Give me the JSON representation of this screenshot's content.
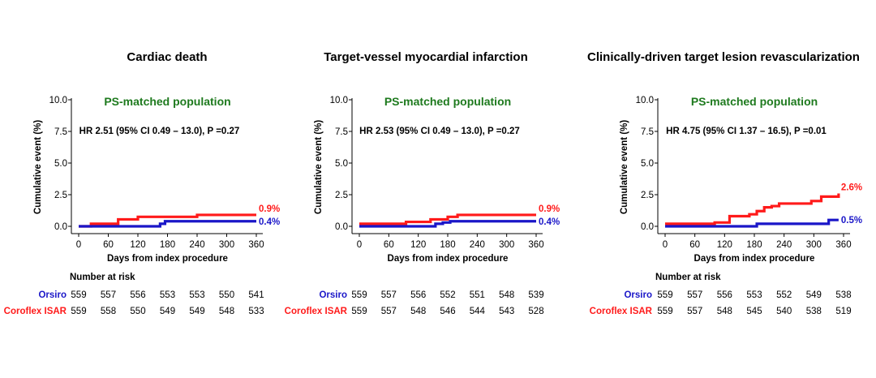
{
  "figure": {
    "colors": {
      "orsiro": "#1a16c8",
      "coroflex": "#ff1a1a",
      "population_label": "#1e7a1e",
      "text": "#000000"
    }
  },
  "chart_data": [
    {
      "type": "line",
      "title": "Cardiac death",
      "subtitle": "PS-matched population",
      "annotation": "HR 2.51 (95% CI 0.49 – 13.0), P =0.27",
      "xlabel": "Days from index procedure",
      "ylabel": "Cumulative event (%)",
      "xlim": [
        0,
        360
      ],
      "ylim": [
        0,
        10
      ],
      "x_ticks": [
        "0",
        "60",
        "120",
        "180",
        "240",
        "300",
        "360"
      ],
      "y_ticks": [
        "0.0",
        "2.5",
        "5.0",
        "7.5",
        "10.0"
      ],
      "series": [
        {
          "name": "Coroflex ISAR",
          "end_label": "0.9%",
          "x": [
            0,
            25,
            75,
            80,
            120,
            240,
            360
          ],
          "y": [
            0,
            0.2,
            0.2,
            0.55,
            0.75,
            0.9,
            0.9
          ]
        },
        {
          "name": "Orsiro",
          "end_label": "0.4%",
          "x": [
            0,
            165,
            175,
            360
          ],
          "y": [
            0,
            0.2,
            0.4,
            0.4
          ]
        }
      ],
      "risk_table": {
        "title": "Number at risk",
        "rows": [
          {
            "label": "Orsiro",
            "values": [
              "559",
              "557",
              "556",
              "553",
              "553",
              "550",
              "541"
            ]
          },
          {
            "label": "Coroflex ISAR",
            "values": [
              "559",
              "558",
              "550",
              "549",
              "549",
              "548",
              "533"
            ]
          }
        ]
      }
    },
    {
      "type": "line",
      "title": "Target-vessel myocardial infarction",
      "subtitle": "PS-matched population",
      "annotation": "HR 2.53 (95% CI 0.49 – 13.0), P =0.27",
      "xlabel": "Days from index procedure",
      "ylabel": "Cumulative event (%)",
      "xlim": [
        0,
        360
      ],
      "ylim": [
        0,
        10
      ],
      "x_ticks": [
        "0",
        "60",
        "120",
        "180",
        "240",
        "300",
        "360"
      ],
      "y_ticks": [
        "0.0",
        "2.5",
        "5.0",
        "7.5",
        "10.0"
      ],
      "series": [
        {
          "name": "Coroflex ISAR",
          "end_label": "0.9%",
          "x": [
            0,
            95,
            145,
            180,
            200,
            360
          ],
          "y": [
            0.2,
            0.35,
            0.55,
            0.75,
            0.9,
            0.9
          ]
        },
        {
          "name": "Orsiro",
          "end_label": "0.4%",
          "x": [
            0,
            155,
            170,
            185,
            360
          ],
          "y": [
            0,
            0.2,
            0.3,
            0.4,
            0.4
          ]
        }
      ],
      "risk_table": {
        "title": "",
        "rows": [
          {
            "label": "Orsiro",
            "values": [
              "559",
              "557",
              "556",
              "552",
              "551",
              "548",
              "539"
            ]
          },
          {
            "label": "Coroflex ISAR",
            "values": [
              "559",
              "557",
              "548",
              "546",
              "544",
              "543",
              "528"
            ]
          }
        ]
      }
    },
    {
      "type": "line",
      "title": "Clinically-driven target lesion revascularization",
      "subtitle": "PS-matched population",
      "annotation": "HR 4.75 (95% CI 1.37 – 16.5), P =0.01",
      "xlabel": "Days from index procedure",
      "ylabel": "Cumulative event (%)",
      "xlim": [
        0,
        360
      ],
      "ylim": [
        0,
        10
      ],
      "x_ticks": [
        "0",
        "60",
        "120",
        "180",
        "240",
        "300",
        "360"
      ],
      "y_ticks": [
        "0.0",
        "2.5",
        "5.0",
        "7.5",
        "10.0"
      ],
      "series": [
        {
          "name": "Coroflex ISAR",
          "end_label": "2.6%",
          "x": [
            0,
            100,
            130,
            170,
            185,
            200,
            215,
            230,
            295,
            315,
            350
          ],
          "y": [
            0.2,
            0.3,
            0.8,
            0.95,
            1.2,
            1.5,
            1.6,
            1.8,
            2.0,
            2.35,
            2.6
          ]
        },
        {
          "name": "Orsiro",
          "end_label": "0.5%",
          "x": [
            0,
            180,
            185,
            320,
            330,
            350
          ],
          "y": [
            0,
            0,
            0.2,
            0.2,
            0.5,
            0.5
          ]
        }
      ],
      "risk_table": {
        "title": "Number at risk",
        "rows": [
          {
            "label": "Orsiro",
            "values": [
              "559",
              "557",
              "556",
              "553",
              "552",
              "549",
              "538"
            ]
          },
          {
            "label": "Coroflex ISAR",
            "values": [
              "559",
              "557",
              "548",
              "545",
              "540",
              "538",
              "519"
            ]
          }
        ]
      }
    }
  ]
}
